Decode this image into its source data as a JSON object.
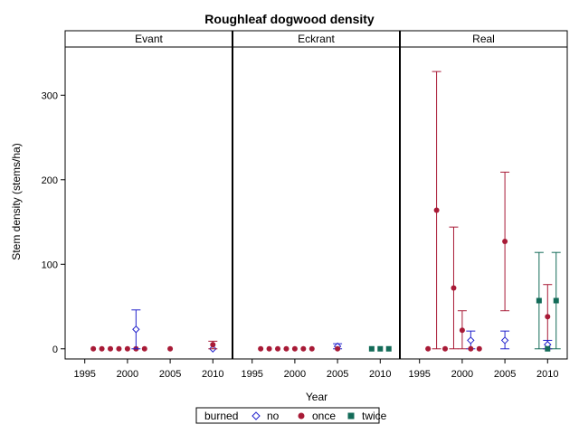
{
  "chart_data": {
    "type": "scatter",
    "title": "Roughleaf dogwood density",
    "xlabel": "Year",
    "ylabel": "Stem density (stems/ha)",
    "xlim": [
      1992.7,
      2012.3
    ],
    "ylim": [
      -12,
      357
    ],
    "xticks": [
      1995,
      2000,
      2005,
      2010
    ],
    "yticks": [
      0,
      100,
      200,
      300
    ],
    "legend": {
      "title": "burned",
      "placement": "bottom",
      "entries": [
        {
          "name": "no",
          "marker": "diamond-open",
          "color": "#2222cc"
        },
        {
          "name": "once",
          "marker": "circle-filled",
          "color": "#a81a36"
        },
        {
          "name": "twice",
          "marker": "square-filled",
          "color": "#136b58"
        }
      ]
    },
    "colors": {
      "no": "#2222cc",
      "once": "#a81a36",
      "twice": "#136b58"
    },
    "panels": [
      {
        "label": "Evant",
        "points": [
          {
            "burned": "once",
            "x": 1996,
            "y": 0,
            "lo": 0,
            "hi": 0
          },
          {
            "burned": "once",
            "x": 1997,
            "y": 0,
            "lo": 0,
            "hi": 0
          },
          {
            "burned": "once",
            "x": 1998,
            "y": 0,
            "lo": 0,
            "hi": 0
          },
          {
            "burned": "once",
            "x": 1999,
            "y": 0,
            "lo": 0,
            "hi": 0
          },
          {
            "burned": "once",
            "x": 2000,
            "y": 0,
            "lo": 0,
            "hi": 0
          },
          {
            "burned": "once",
            "x": 2001,
            "y": 0,
            "lo": 0,
            "hi": 0
          },
          {
            "burned": "once",
            "x": 2002,
            "y": 0,
            "lo": 0,
            "hi": 0
          },
          {
            "burned": "no",
            "x": 2001,
            "y": 23,
            "lo": 0,
            "hi": 46
          },
          {
            "burned": "once",
            "x": 2005,
            "y": 0,
            "lo": 0,
            "hi": 0
          },
          {
            "burned": "no",
            "x": 2010,
            "y": 0,
            "lo": 0,
            "hi": 0
          },
          {
            "burned": "once",
            "x": 2010,
            "y": 5,
            "lo": 0,
            "hi": 9
          }
        ]
      },
      {
        "label": "Eckrant",
        "points": [
          {
            "burned": "once",
            "x": 1996,
            "y": 0,
            "lo": 0,
            "hi": 0
          },
          {
            "burned": "once",
            "x": 1997,
            "y": 0,
            "lo": 0,
            "hi": 0
          },
          {
            "burned": "once",
            "x": 1998,
            "y": 0,
            "lo": 0,
            "hi": 0
          },
          {
            "burned": "once",
            "x": 1999,
            "y": 0,
            "lo": 0,
            "hi": 0
          },
          {
            "burned": "once",
            "x": 2000,
            "y": 0,
            "lo": 0,
            "hi": 0
          },
          {
            "burned": "once",
            "x": 2001,
            "y": 0,
            "lo": 0,
            "hi": 0
          },
          {
            "burned": "once",
            "x": 2002,
            "y": 0,
            "lo": 0,
            "hi": 0
          },
          {
            "burned": "no",
            "x": 2005,
            "y": 3,
            "lo": 0,
            "hi": 6
          },
          {
            "burned": "once",
            "x": 2005,
            "y": 0,
            "lo": 0,
            "hi": 0
          },
          {
            "burned": "twice",
            "x": 2009,
            "y": 0,
            "lo": 0,
            "hi": 0
          },
          {
            "burned": "twice",
            "x": 2010,
            "y": 0,
            "lo": 0,
            "hi": 0
          },
          {
            "burned": "twice",
            "x": 2011,
            "y": 0,
            "lo": 0,
            "hi": 0
          }
        ]
      },
      {
        "label": "Real",
        "points": [
          {
            "burned": "once",
            "x": 1996,
            "y": 0,
            "lo": 0,
            "hi": 0
          },
          {
            "burned": "once",
            "x": 1997,
            "y": 164,
            "lo": 0,
            "hi": 328
          },
          {
            "burned": "once",
            "x": 1998,
            "y": 0,
            "lo": 0,
            "hi": 0
          },
          {
            "burned": "once",
            "x": 1999,
            "y": 72,
            "lo": 0,
            "hi": 144
          },
          {
            "burned": "once",
            "x": 2000,
            "y": 22,
            "lo": 0,
            "hi": 45
          },
          {
            "burned": "no",
            "x": 2001,
            "y": 10,
            "lo": 0,
            "hi": 21
          },
          {
            "burned": "once",
            "x": 2001,
            "y": 0,
            "lo": 0,
            "hi": 0
          },
          {
            "burned": "once",
            "x": 2002,
            "y": 0,
            "lo": 0,
            "hi": 0
          },
          {
            "burned": "once",
            "x": 2005,
            "y": 127,
            "lo": 45,
            "hi": 209
          },
          {
            "burned": "no",
            "x": 2005,
            "y": 10,
            "lo": 0,
            "hi": 21
          },
          {
            "burned": "twice",
            "x": 2009,
            "y": 57,
            "lo": 0,
            "hi": 114
          },
          {
            "burned": "once",
            "x": 2010,
            "y": 38,
            "lo": 0,
            "hi": 76
          },
          {
            "burned": "no",
            "x": 2010,
            "y": 5,
            "lo": 0,
            "hi": 10
          },
          {
            "burned": "twice",
            "x": 2010,
            "y": 0,
            "lo": 0,
            "hi": 0
          },
          {
            "burned": "twice",
            "x": 2011,
            "y": 57,
            "lo": 0,
            "hi": 114
          }
        ]
      }
    ]
  }
}
